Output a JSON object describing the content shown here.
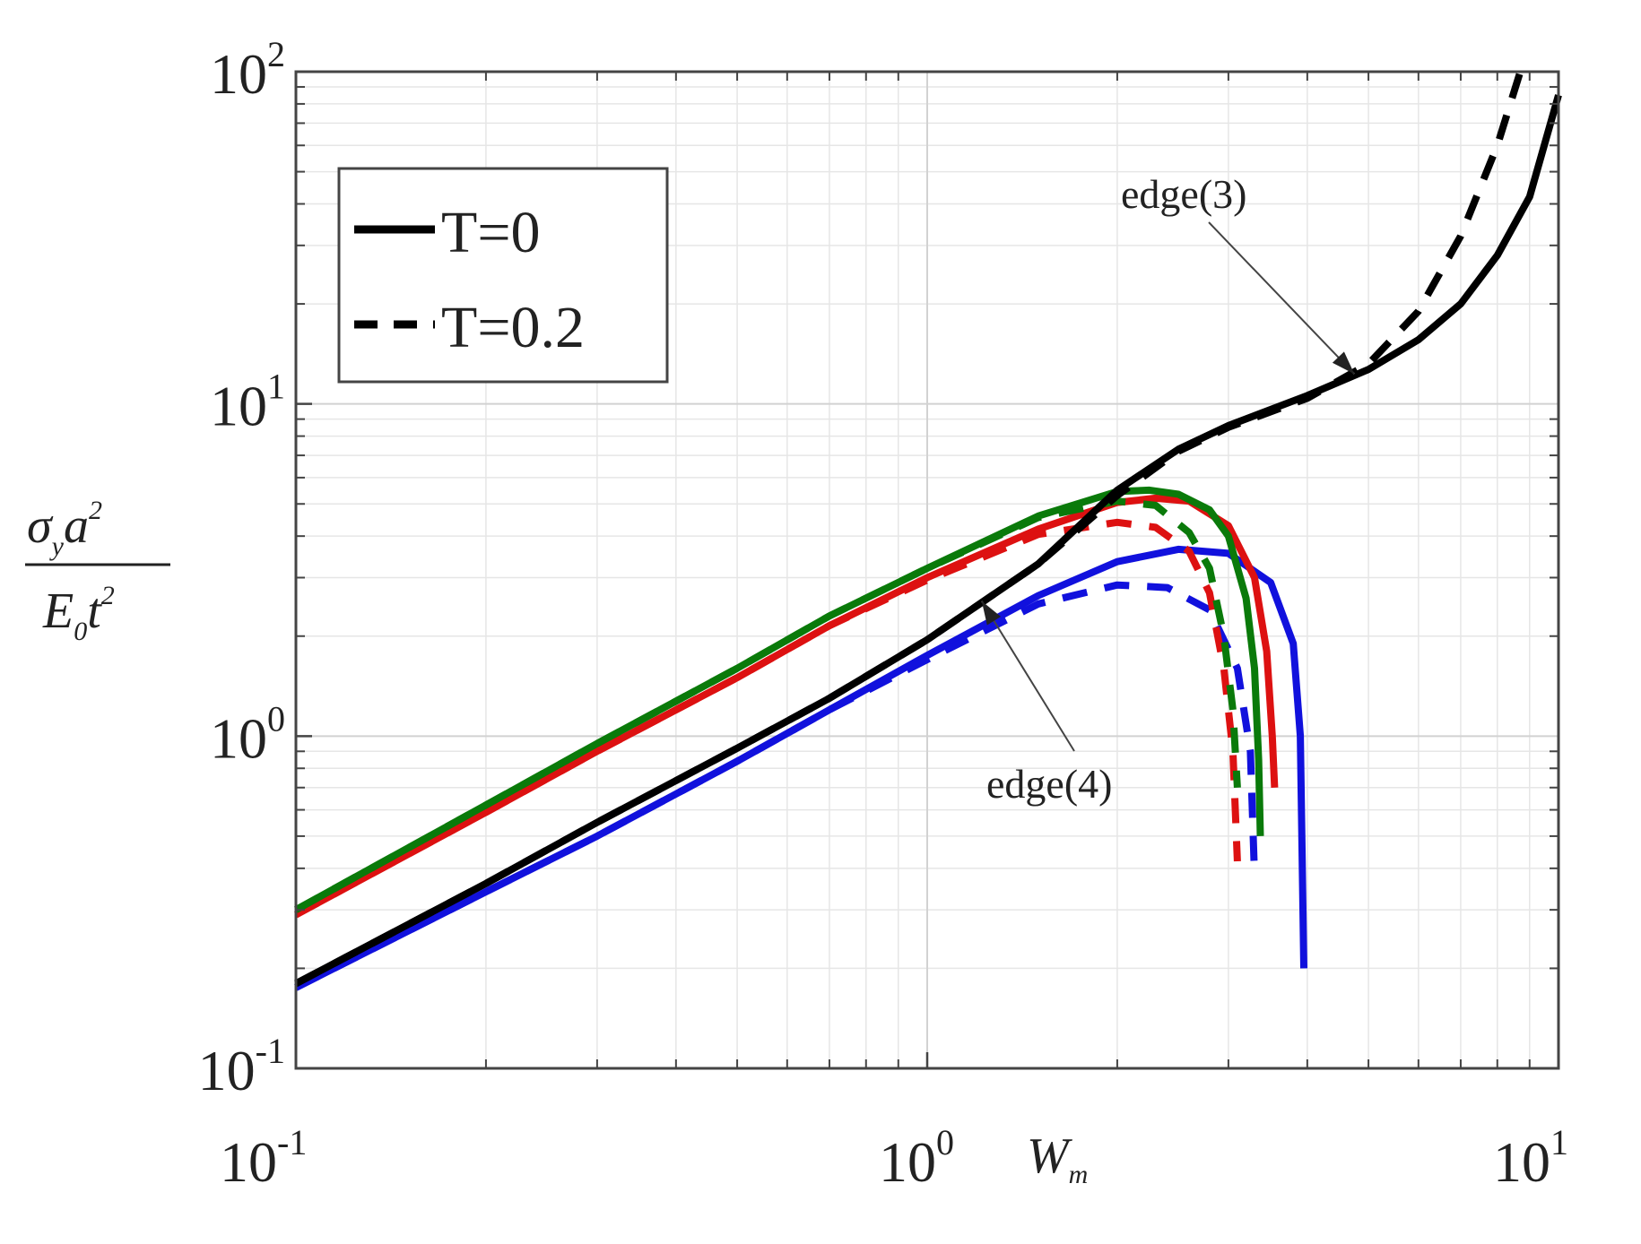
{
  "chart_data": {
    "type": "line",
    "xscale": "log",
    "yscale": "log",
    "xlim": [
      0.1,
      10
    ],
    "ylim": [
      0.1,
      100
    ],
    "grid": true,
    "legend_placement": "top-left",
    "xlabel": {
      "base": "W",
      "sub": "m"
    },
    "ylabel": {
      "num_a": "σ",
      "num_sub": "y",
      "num_b": "a",
      "num_sup": "2",
      "den_a": "E",
      "den_sub": "0",
      "den_b": "t",
      "den_sup": "2"
    },
    "x_ticks": [
      {
        "base": "10",
        "exp": "-1",
        "value": 0.1
      },
      {
        "base": "10",
        "exp": "0",
        "value": 1
      },
      {
        "base": "10",
        "exp": "1",
        "value": 10
      }
    ],
    "y_ticks": [
      {
        "base": "10",
        "exp": "-1",
        "value": 0.1
      },
      {
        "base": "10",
        "exp": "0",
        "value": 1
      },
      {
        "base": "10",
        "exp": "1",
        "value": 10
      },
      {
        "base": "10",
        "exp": "2",
        "value": 100
      }
    ],
    "legend": [
      {
        "label": "T=0",
        "style": "solid",
        "color": "#000000"
      },
      {
        "label": "T=0.2",
        "style": "dashed",
        "color": "#000000"
      }
    ],
    "annotations": [
      {
        "text": "edge(3)",
        "points_to": [
          4.75,
          12.3
        ]
      },
      {
        "text": "edge(4)",
        "points_to": [
          1.22,
          2.55
        ]
      }
    ],
    "series": [
      {
        "color": "#000000",
        "style": "solid",
        "T": 0,
        "points": [
          [
            0.1,
            0.18
          ],
          [
            0.2,
            0.36
          ],
          [
            0.3,
            0.55
          ],
          [
            0.5,
            0.92
          ],
          [
            0.7,
            1.3
          ],
          [
            1.0,
            1.95
          ],
          [
            1.5,
            3.3
          ],
          [
            2.0,
            5.5
          ],
          [
            2.5,
            7.3
          ],
          [
            3.0,
            8.6
          ],
          [
            4.0,
            10.6
          ],
          [
            5.0,
            12.7
          ],
          [
            6.0,
            15.6
          ],
          [
            7.0,
            20
          ],
          [
            8.0,
            28
          ],
          [
            9.0,
            42
          ],
          [
            10.0,
            85
          ]
        ]
      },
      {
        "color": "#000000",
        "style": "dashed",
        "T": 0.2,
        "points": [
          [
            0.1,
            0.18
          ],
          [
            0.2,
            0.36
          ],
          [
            0.3,
            0.55
          ],
          [
            0.5,
            0.92
          ],
          [
            0.7,
            1.3
          ],
          [
            1.0,
            1.95
          ],
          [
            1.5,
            3.3
          ],
          [
            2.0,
            5.3
          ],
          [
            2.5,
            7.2
          ],
          [
            3.0,
            8.5
          ],
          [
            4.0,
            10.4
          ],
          [
            5.0,
            13.2
          ],
          [
            6.0,
            19
          ],
          [
            7.0,
            32
          ],
          [
            8.0,
            60
          ],
          [
            8.7,
            100
          ]
        ]
      },
      {
        "color": "#0a7a0a",
        "style": "solid",
        "T": 0,
        "points": [
          [
            0.1,
            0.3
          ],
          [
            0.2,
            0.62
          ],
          [
            0.3,
            0.95
          ],
          [
            0.5,
            1.6
          ],
          [
            0.7,
            2.3
          ],
          [
            1.0,
            3.2
          ],
          [
            1.5,
            4.6
          ],
          [
            2.0,
            5.45
          ],
          [
            2.25,
            5.5
          ],
          [
            2.5,
            5.35
          ],
          [
            2.8,
            4.8
          ],
          [
            3.0,
            4.0
          ],
          [
            3.2,
            2.6
          ],
          [
            3.3,
            1.6
          ],
          [
            3.35,
            0.85
          ],
          [
            3.37,
            0.5
          ]
        ]
      },
      {
        "color": "#0a7a0a",
        "style": "dashed",
        "T": 0.2,
        "points": [
          [
            0.1,
            0.3
          ],
          [
            0.2,
            0.62
          ],
          [
            0.3,
            0.95
          ],
          [
            0.5,
            1.6
          ],
          [
            0.7,
            2.3
          ],
          [
            1.0,
            3.2
          ],
          [
            1.5,
            4.55
          ],
          [
            2.0,
            5.1
          ],
          [
            2.3,
            4.95
          ],
          [
            2.6,
            4.1
          ],
          [
            2.8,
            3.2
          ],
          [
            2.95,
            2.0
          ],
          [
            3.05,
            1.2
          ],
          [
            3.1,
            0.7
          ]
        ]
      },
      {
        "color": "#dd1111",
        "style": "solid",
        "T": 0,
        "points": [
          [
            0.1,
            0.29
          ],
          [
            0.2,
            0.59
          ],
          [
            0.3,
            0.9
          ],
          [
            0.5,
            1.5
          ],
          [
            0.7,
            2.15
          ],
          [
            1.0,
            3.0
          ],
          [
            1.5,
            4.2
          ],
          [
            2.0,
            5.05
          ],
          [
            2.3,
            5.2
          ],
          [
            2.6,
            5.1
          ],
          [
            3.0,
            4.3
          ],
          [
            3.3,
            3.0
          ],
          [
            3.45,
            1.8
          ],
          [
            3.52,
            1.0
          ],
          [
            3.55,
            0.7
          ]
        ]
      },
      {
        "color": "#dd1111",
        "style": "dashed",
        "T": 0.2,
        "points": [
          [
            0.1,
            0.29
          ],
          [
            0.2,
            0.59
          ],
          [
            0.3,
            0.9
          ],
          [
            0.5,
            1.5
          ],
          [
            0.7,
            2.15
          ],
          [
            1.0,
            2.95
          ],
          [
            1.5,
            4.05
          ],
          [
            2.0,
            4.4
          ],
          [
            2.3,
            4.25
          ],
          [
            2.6,
            3.6
          ],
          [
            2.8,
            2.7
          ],
          [
            2.95,
            1.6
          ],
          [
            3.05,
            0.9
          ],
          [
            3.1,
            0.42
          ]
        ]
      },
      {
        "color": "#1111dd",
        "style": "solid",
        "T": 0,
        "points": [
          [
            0.1,
            0.175
          ],
          [
            0.2,
            0.34
          ],
          [
            0.3,
            0.5
          ],
          [
            0.5,
            0.84
          ],
          [
            0.7,
            1.2
          ],
          [
            1.0,
            1.75
          ],
          [
            1.5,
            2.65
          ],
          [
            2.0,
            3.35
          ],
          [
            2.5,
            3.65
          ],
          [
            3.0,
            3.55
          ],
          [
            3.5,
            2.9
          ],
          [
            3.8,
            1.9
          ],
          [
            3.9,
            1.0
          ],
          [
            3.95,
            0.2
          ]
        ]
      },
      {
        "color": "#1111dd",
        "style": "dashed",
        "T": 0.2,
        "points": [
          [
            0.1,
            0.175
          ],
          [
            0.2,
            0.34
          ],
          [
            0.3,
            0.5
          ],
          [
            0.5,
            0.84
          ],
          [
            0.7,
            1.2
          ],
          [
            1.0,
            1.7
          ],
          [
            1.5,
            2.5
          ],
          [
            2.0,
            2.85
          ],
          [
            2.4,
            2.8
          ],
          [
            2.8,
            2.4
          ],
          [
            3.1,
            1.6
          ],
          [
            3.25,
            0.9
          ],
          [
            3.3,
            0.38
          ]
        ]
      }
    ]
  }
}
